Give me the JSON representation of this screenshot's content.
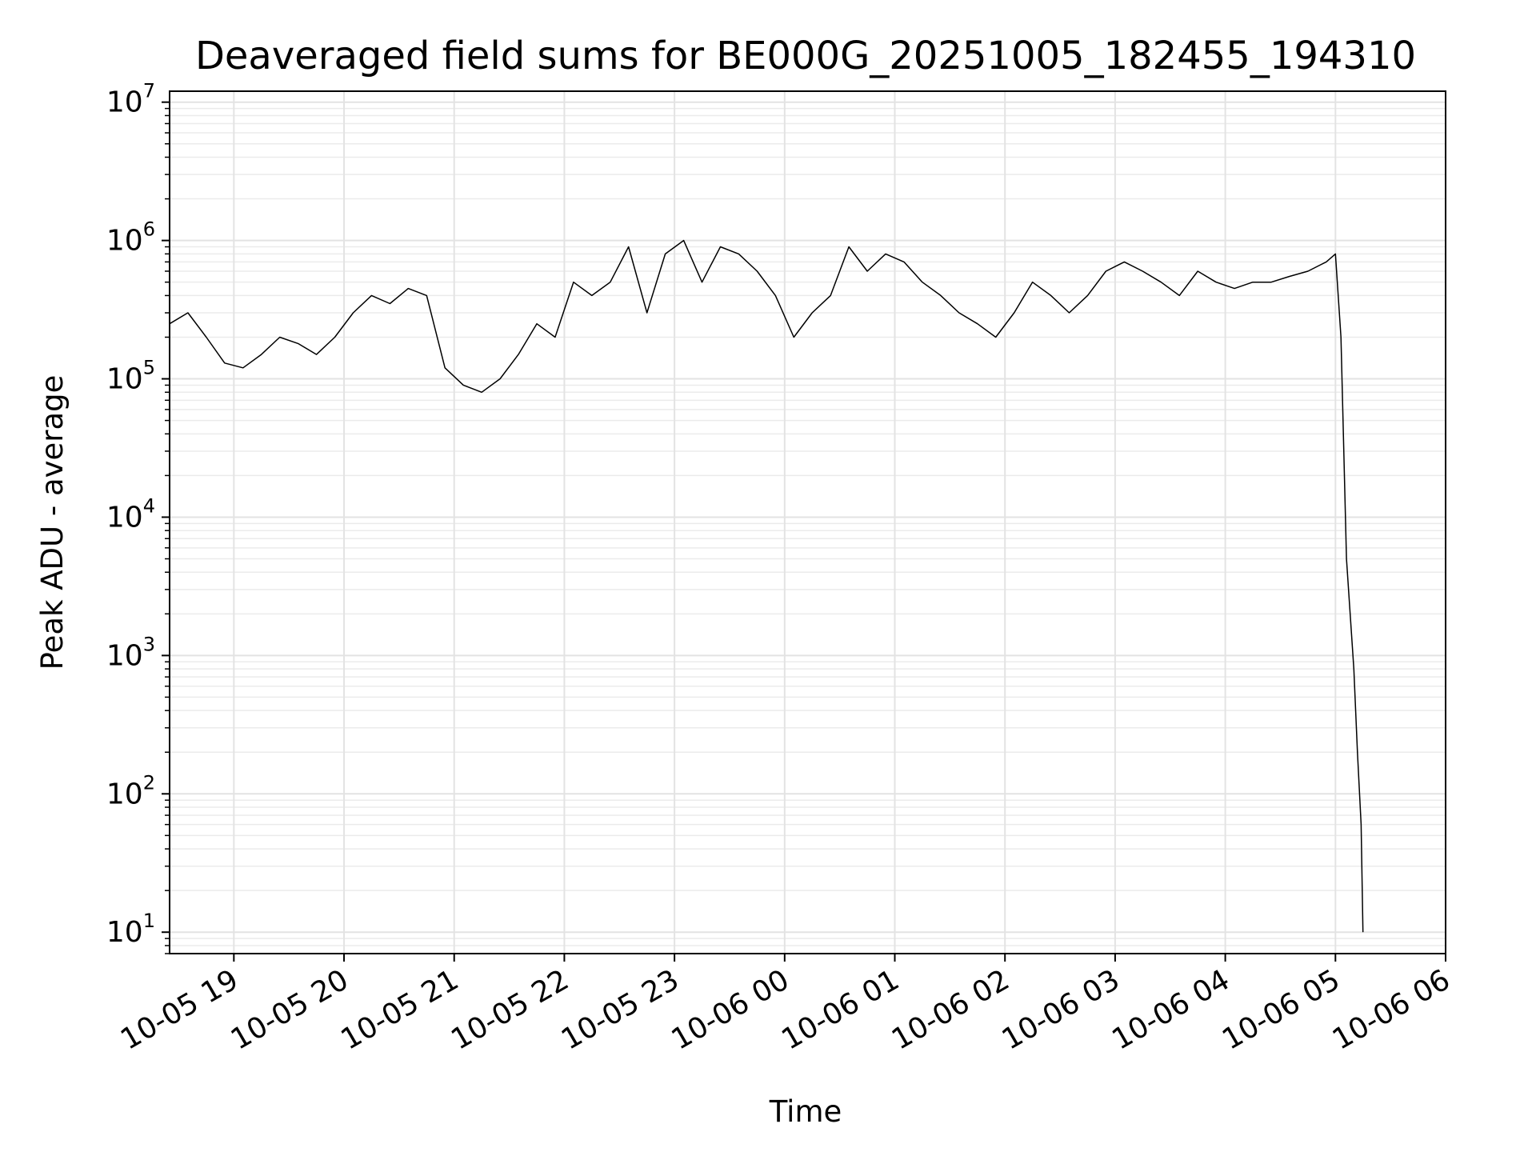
{
  "chart_data": {
    "type": "line",
    "title": "Deaveraged field sums for BE000G_20251005_182455_194310",
    "xlabel": "Time",
    "ylabel": "Peak ADU - average",
    "yscale": "log",
    "grid": true,
    "xlim": [
      "10-05 18:25",
      "10-06 06:00"
    ],
    "ylim": [
      7,
      12000000
    ],
    "x_ticks": [
      {
        "value": "10-05 19:00",
        "label": "10-05 19"
      },
      {
        "value": "10-05 20:00",
        "label": "10-05 20"
      },
      {
        "value": "10-05 21:00",
        "label": "10-05 21"
      },
      {
        "value": "10-05 22:00",
        "label": "10-05 22"
      },
      {
        "value": "10-05 23:00",
        "label": "10-05 23"
      },
      {
        "value": "10-06 00:00",
        "label": "10-06 00"
      },
      {
        "value": "10-06 01:00",
        "label": "10-06 01"
      },
      {
        "value": "10-06 02:00",
        "label": "10-06 02"
      },
      {
        "value": "10-06 03:00",
        "label": "10-06 03"
      },
      {
        "value": "10-06 04:00",
        "label": "10-06 04"
      },
      {
        "value": "10-06 05:00",
        "label": "10-06 05"
      },
      {
        "value": "10-06 06:00",
        "label": "10-06 06"
      }
    ],
    "y_ticks": [
      {
        "value": 10,
        "base": "10",
        "exp": "1"
      },
      {
        "value": 100,
        "base": "10",
        "exp": "2"
      },
      {
        "value": 1000,
        "base": "10",
        "exp": "3"
      },
      {
        "value": 10000,
        "base": "10",
        "exp": "4"
      },
      {
        "value": 100000,
        "base": "10",
        "exp": "5"
      },
      {
        "value": 1000000,
        "base": "10",
        "exp": "6"
      },
      {
        "value": 10000000,
        "base": "10",
        "exp": "7"
      }
    ],
    "series": [
      {
        "color": "#000000",
        "x": [
          "10-05 18:25",
          "10-05 18:35",
          "10-05 18:45",
          "10-05 18:55",
          "10-05 19:05",
          "10-05 19:15",
          "10-05 19:25",
          "10-05 19:35",
          "10-05 19:45",
          "10-05 19:55",
          "10-05 20:05",
          "10-05 20:15",
          "10-05 20:25",
          "10-05 20:35",
          "10-05 20:45",
          "10-05 20:55",
          "10-05 21:05",
          "10-05 21:15",
          "10-05 21:25",
          "10-05 21:35",
          "10-05 21:45",
          "10-05 21:55",
          "10-05 22:05",
          "10-05 22:15",
          "10-05 22:25",
          "10-05 22:35",
          "10-05 22:45",
          "10-05 22:55",
          "10-05 23:05",
          "10-05 23:15",
          "10-05 23:25",
          "10-05 23:35",
          "10-05 23:45",
          "10-05 23:55",
          "10-06 00:05",
          "10-06 00:15",
          "10-06 00:25",
          "10-06 00:35",
          "10-06 00:45",
          "10-06 00:55",
          "10-06 01:05",
          "10-06 01:15",
          "10-06 01:25",
          "10-06 01:35",
          "10-06 01:45",
          "10-06 01:55",
          "10-06 02:05",
          "10-06 02:15",
          "10-06 02:25",
          "10-06 02:35",
          "10-06 02:45",
          "10-06 02:55",
          "10-06 03:05",
          "10-06 03:15",
          "10-06 03:25",
          "10-06 03:35",
          "10-06 03:45",
          "10-06 03:55",
          "10-06 04:05",
          "10-06 04:15",
          "10-06 04:25",
          "10-06 04:35",
          "10-06 04:45",
          "10-06 04:55",
          "10-06 05:00",
          "10-06 05:03",
          "10-06 05:06",
          "10-06 05:08",
          "10-06 05:10",
          "10-06 05:12",
          "10-06 05:14",
          "10-06 05:15"
        ],
        "values": [
          250000,
          300000,
          200000,
          130000,
          120000,
          150000,
          200000,
          180000,
          150000,
          200000,
          300000,
          400000,
          350000,
          450000,
          400000,
          120000,
          90000,
          80000,
          100000,
          150000,
          250000,
          200000,
          500000,
          400000,
          500000,
          900000,
          300000,
          800000,
          1000000,
          500000,
          900000,
          800000,
          600000,
          400000,
          200000,
          300000,
          400000,
          900000,
          600000,
          800000,
          700000,
          500000,
          400000,
          300000,
          250000,
          200000,
          300000,
          500000,
          400000,
          300000,
          400000,
          600000,
          700000,
          600000,
          500000,
          400000,
          600000,
          500000,
          450000,
          500000,
          500000,
          550000,
          600000,
          700000,
          800000,
          200000,
          5000,
          2000,
          800,
          200,
          60,
          10
        ]
      }
    ]
  }
}
